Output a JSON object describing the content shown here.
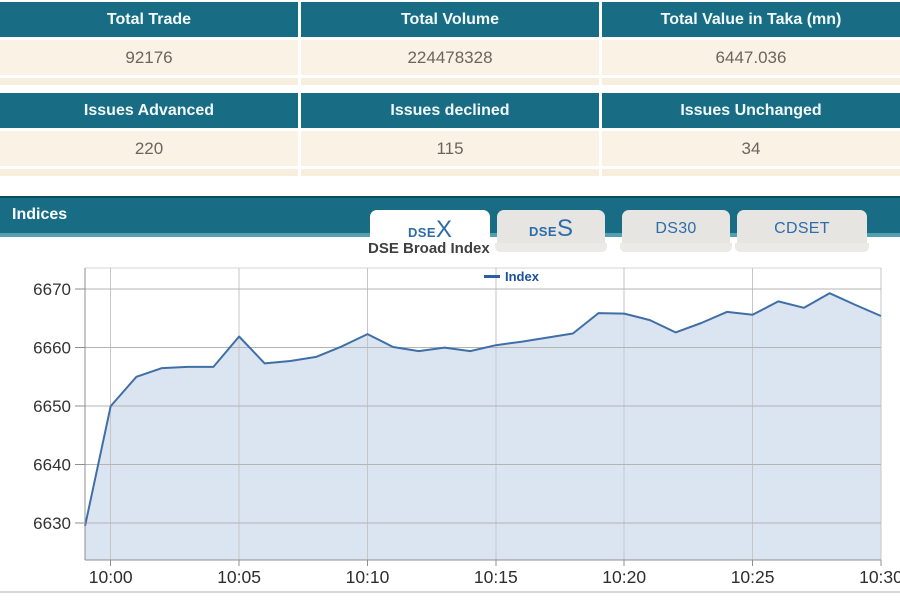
{
  "summary_table": {
    "headers": [
      "Total Trade",
      "Total Volume",
      "Total Value in Taka (mn)"
    ],
    "values": [
      "92176",
      "224478328",
      "6447.036"
    ]
  },
  "issues_table": {
    "headers": [
      "Issues Advanced",
      "Issues declined",
      "Issues Unchanged"
    ],
    "values": [
      "220",
      "115",
      "34"
    ]
  },
  "indices_bar": {
    "title": "Indices"
  },
  "tabs": [
    {
      "label_small": "DSE",
      "label_big": "X",
      "active": true
    },
    {
      "label_small": "DSE",
      "label_big": "S",
      "active": false
    },
    {
      "label": "DS30",
      "active": false
    },
    {
      "label": "CDSET",
      "active": false
    }
  ],
  "chart_data": {
    "type": "area",
    "title": "DSE Broad Index",
    "legend_label": "Index",
    "legend_position": "top-center",
    "grid": true,
    "x_ticks": [
      "10:00",
      "10:05",
      "10:10",
      "10:15",
      "10:20",
      "10:25",
      "10:30"
    ],
    "x_tick_indices": [
      1,
      6,
      11,
      16,
      21,
      26,
      31
    ],
    "y_ticks": [
      6630,
      6640,
      6650,
      6660,
      6670
    ],
    "ylim": [
      6623.7,
      6673.6
    ],
    "series": [
      {
        "name": "Index",
        "values": [
          6629.5,
          6650.0,
          6655.0,
          6656.5,
          6656.7,
          6656.7,
          6661.9,
          6657.3,
          6657.7,
          6658.4,
          6660.2,
          6662.3,
          6660.1,
          6659.4,
          6660.0,
          6659.4,
          6660.4,
          6661.0,
          6661.7,
          6662.4,
          6665.9,
          6665.8,
          6664.7,
          6662.6,
          6664.2,
          6666.1,
          6665.6,
          6667.9,
          6666.8,
          6669.3,
          6667.3,
          6665.4
        ]
      }
    ],
    "colors": {
      "line": "#3f6fa6",
      "fill": "#dbe5f1",
      "grid_h": "#b4b4b4",
      "grid_v": "#c6c6c6",
      "axis": "#8f8f8f",
      "tick_label": "#333333"
    }
  },
  "colors": {
    "header_teal": "#186d85",
    "teal_underline": "#55a0ae",
    "row_cream": "#faf2e5",
    "tab_blue": "#2d6ca8"
  }
}
